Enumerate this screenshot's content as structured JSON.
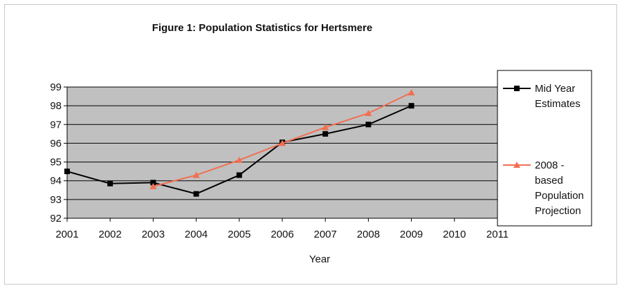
{
  "chart_data": {
    "type": "line",
    "title": "Figure 1: Population Statistics for Hertsmere",
    "xlabel": "Year",
    "ylabel": "",
    "x": [
      "2001",
      "2002",
      "2003",
      "2004",
      "2005",
      "2006",
      "2007",
      "2008",
      "2009",
      "2010",
      "2011"
    ],
    "ylim": [
      92,
      99
    ],
    "yticks": [
      "92",
      "93",
      "94",
      "95",
      "96",
      "97",
      "98",
      "99"
    ],
    "grid": true,
    "plot_background": "#c0c0c0",
    "legend_position": "right",
    "series": [
      {
        "name_lines": [
          "Mid Year",
          "Estimates"
        ],
        "color": "#000000",
        "marker": "square",
        "values": [
          94.5,
          93.85,
          93.9,
          93.3,
          94.3,
          96.05,
          96.5,
          97.0,
          98.0,
          null,
          null
        ]
      },
      {
        "name_lines": [
          "2008 -",
          "based",
          "Population",
          "Projection"
        ],
        "color": "#f26f52",
        "marker": "triangle",
        "values": [
          null,
          null,
          93.7,
          94.3,
          95.1,
          96.0,
          96.85,
          97.6,
          98.7,
          null,
          null
        ]
      }
    ]
  }
}
